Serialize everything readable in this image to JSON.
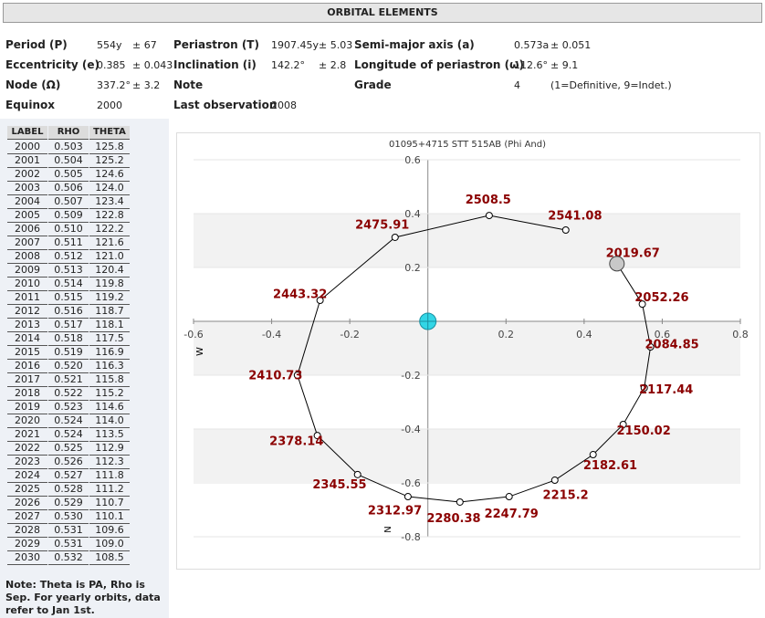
{
  "header": {
    "title": "ORBITAL ELEMENTS"
  },
  "elements": [
    [
      {
        "label": "Period (P)",
        "value": "554y",
        "error": "± 67"
      },
      {
        "label": "Periastron (T)",
        "value": "1907.45y",
        "error": "± 5.03"
      },
      {
        "label": "Semi-major axis (a)",
        "value": "0.573a",
        "error": "± 0.051"
      }
    ],
    [
      {
        "label": "Eccentricity (e)",
        "value": "0.385",
        "error": "± 0.043"
      },
      {
        "label": "Inclination (i)",
        "value": "142.2°",
        "error": "± 2.8"
      },
      {
        "label": "Longitude of periastron (ω)",
        "value": "112.6°",
        "error": "± 9.1"
      }
    ],
    [
      {
        "label": "Node (Ω)",
        "value": "337.2°",
        "error": "± 3.2"
      },
      {
        "label": "Note"
      },
      {
        "label": "Grade",
        "value": "4",
        "error": "(1=Definitive, 9=Indet.)"
      }
    ],
    [
      {
        "label": "Equinox",
        "value": "2000"
      },
      {
        "label": "Last observation",
        "value": "2008"
      }
    ]
  ],
  "table": {
    "columns": [
      "LABEL",
      "RHO",
      "THETA"
    ],
    "rows": [
      [
        "2000",
        "0.503",
        "125.8"
      ],
      [
        "2001",
        "0.504",
        "125.2"
      ],
      [
        "2002",
        "0.505",
        "124.6"
      ],
      [
        "2003",
        "0.506",
        "124.0"
      ],
      [
        "2004",
        "0.507",
        "123.4"
      ],
      [
        "2005",
        "0.509",
        "122.8"
      ],
      [
        "2006",
        "0.510",
        "122.2"
      ],
      [
        "2007",
        "0.511",
        "121.6"
      ],
      [
        "2008",
        "0.512",
        "121.0"
      ],
      [
        "2009",
        "0.513",
        "120.4"
      ],
      [
        "2010",
        "0.514",
        "119.8"
      ],
      [
        "2011",
        "0.515",
        "119.2"
      ],
      [
        "2012",
        "0.516",
        "118.7"
      ],
      [
        "2013",
        "0.517",
        "118.1"
      ],
      [
        "2014",
        "0.518",
        "117.5"
      ],
      [
        "2015",
        "0.519",
        "116.9"
      ],
      [
        "2016",
        "0.520",
        "116.3"
      ],
      [
        "2017",
        "0.521",
        "115.8"
      ],
      [
        "2018",
        "0.522",
        "115.2"
      ],
      [
        "2019",
        "0.523",
        "114.6"
      ],
      [
        "2020",
        "0.524",
        "114.0"
      ],
      [
        "2021",
        "0.524",
        "113.5"
      ],
      [
        "2022",
        "0.525",
        "112.9"
      ],
      [
        "2023",
        "0.526",
        "112.3"
      ],
      [
        "2024",
        "0.527",
        "111.8"
      ],
      [
        "2025",
        "0.528",
        "111.2"
      ],
      [
        "2026",
        "0.529",
        "110.7"
      ],
      [
        "2027",
        "0.530",
        "110.1"
      ],
      [
        "2028",
        "0.531",
        "109.6"
      ],
      [
        "2029",
        "0.531",
        "109.0"
      ],
      [
        "2030",
        "0.532",
        "108.5"
      ]
    ]
  },
  "note": "Note: Theta is PA, Rho is Sep. For yearly orbits, data refer to Jan 1st.",
  "chart_data": {
    "type": "line",
    "title": "01095+4715 STT 515AB (Phi And)",
    "xlabel": "W",
    "ylabel": "N",
    "xlim": [
      -0.6,
      0.8
    ],
    "ylim": [
      -0.8,
      0.6
    ],
    "xticks": [
      -0.6,
      -0.4,
      -0.2,
      0.2,
      0.4,
      0.6,
      0.8
    ],
    "yticks": [
      0.6,
      0.4,
      0.2,
      -0.2,
      -0.4,
      -0.6,
      -0.8
    ],
    "color": "#000000",
    "label_color": "#8b0000",
    "primary": {
      "x": 0,
      "y": 0,
      "color": "#33d6e6"
    },
    "current": {
      "x": 0.484,
      "y": 0.214,
      "color": "#c8c8c8"
    },
    "epochs": [
      2019.67,
      2052.26,
      2084.85,
      2117.44,
      2150.02,
      2182.61,
      2215.2,
      2247.79,
      2280.38,
      2312.97,
      2345.55,
      2378.14,
      2410.73,
      2443.32,
      2475.91,
      2508.5,
      2541.08
    ],
    "x": [
      0.484,
      0.549,
      0.57,
      0.554,
      0.5,
      0.423,
      0.325,
      0.208,
      0.082,
      -0.051,
      -0.18,
      -0.283,
      -0.334,
      -0.276,
      -0.084,
      0.157,
      0.353
    ],
    "values": [
      0.214,
      0.064,
      -0.095,
      -0.247,
      -0.383,
      -0.495,
      -0.59,
      -0.651,
      -0.671,
      -0.651,
      -0.569,
      -0.424,
      -0.2,
      0.078,
      0.312,
      0.393,
      0.339
    ]
  }
}
